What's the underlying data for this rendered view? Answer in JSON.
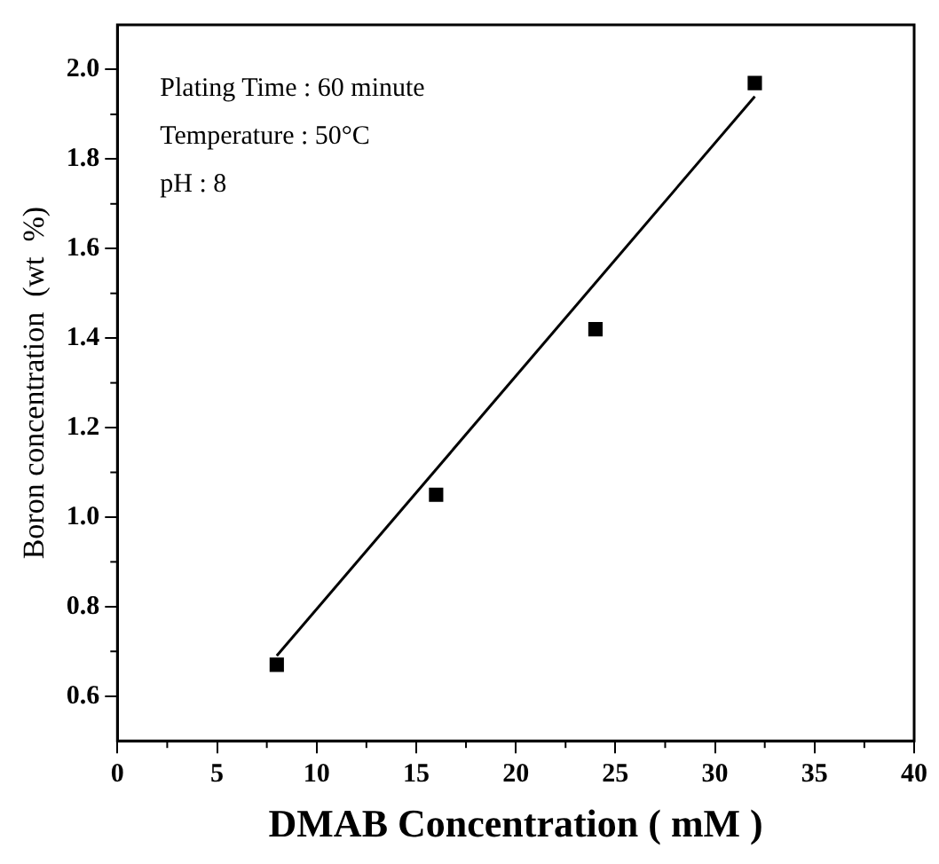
{
  "chart_data": {
    "type": "scatter",
    "xlabel": "DMAB Concentration ( mM )",
    "ylabel": "Boron concentration  (wt  %)",
    "annotations": [
      "Plating Time : 60 minute",
      "Temperature : 50°C",
      "pH : 8"
    ],
    "x": [
      8,
      16,
      24,
      32
    ],
    "series": [
      {
        "color": "#000000",
        "values": [
          0.67,
          1.05,
          1.42,
          1.97
        ],
        "marker": "square"
      },
      {
        "type": "line",
        "color": "#000000",
        "x": [
          8,
          32
        ],
        "values": [
          0.69,
          1.94
        ],
        "marker": "none"
      }
    ],
    "xlim": [
      0,
      40
    ],
    "xticks": [
      0,
      5,
      10,
      15,
      20,
      25,
      30,
      35,
      40
    ],
    "ylim": [
      0.5,
      2.1
    ],
    "yticks": [
      {
        "value": 0.6,
        "label": "0.6"
      },
      {
        "value": 0.8,
        "label": "0.8"
      },
      {
        "value": 1.0,
        "label": "1.0"
      },
      {
        "value": 1.2,
        "label": "1.2"
      },
      {
        "value": 1.4,
        "label": "1.4"
      },
      {
        "value": 1.6,
        "label": "1.6"
      },
      {
        "value": 1.8,
        "label": "1.8"
      },
      {
        "value": 2.0,
        "label": "2.0"
      }
    ],
    "grid": false,
    "legend": false
  }
}
